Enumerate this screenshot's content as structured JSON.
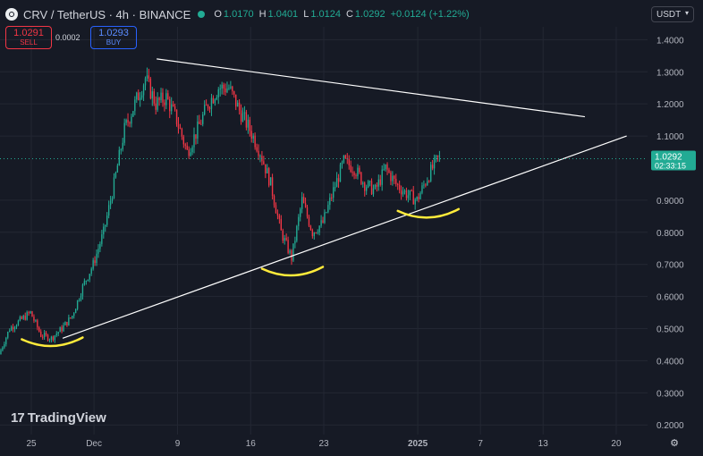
{
  "header": {
    "symbol_title": "CRV / TetherUS · 4h · BINANCE",
    "ohlc": [
      {
        "key": "O",
        "value": "1.0170"
      },
      {
        "key": "H",
        "value": "1.0401"
      },
      {
        "key": "L",
        "value": "1.0124"
      },
      {
        "key": "C",
        "value": "1.0292"
      }
    ],
    "change": "+0.0124 (+1.22%)",
    "status_color": "#22ab94"
  },
  "trade": {
    "sell_price": "1.0291",
    "sell_label": "SELL",
    "spread": "0.0002",
    "buy_price": "1.0293",
    "buy_label": "BUY"
  },
  "currency_select": {
    "value": "USDT"
  },
  "branding": {
    "name": "TradingView",
    "mark": "17"
  },
  "colors": {
    "up": "#22ab94",
    "down": "#f23645",
    "background": "#161a25",
    "grid": "#232733",
    "trendline": "#ffffff",
    "highlight": "#ffeb3b"
  },
  "chart_data": {
    "type": "candlestick",
    "title": "CRV / TetherUS · 4h · BINANCE",
    "x_ticks": [
      "25",
      "Dec",
      "9",
      "16",
      "23",
      "2025",
      "7",
      "13",
      "20"
    ],
    "y_ticks": [
      "1.4000",
      "1.3000",
      "1.2000",
      "1.1000",
      "0.9000",
      "0.8000",
      "0.7000",
      "0.6000",
      "0.5000",
      "0.4000",
      "0.3000",
      "0.2000"
    ],
    "ylim": [
      0.17,
      1.44
    ],
    "xlim": [
      "2024-11-22",
      "2025-01-23"
    ],
    "grid": true,
    "last_price": "1.0292",
    "countdown": "02:33:15",
    "price_path": [
      [
        "2024-11-22",
        0.42
      ],
      [
        "2024-11-23",
        0.5
      ],
      [
        "2024-11-25",
        0.55
      ],
      [
        "2024-11-26",
        0.48
      ],
      [
        "2024-11-27",
        0.47
      ],
      [
        "2024-11-28",
        0.5
      ],
      [
        "2024-11-29",
        0.54
      ],
      [
        "2024-11-30",
        0.63
      ],
      [
        "2024-12-01",
        0.7
      ],
      [
        "2024-12-02",
        0.8
      ],
      [
        "2024-12-03",
        0.95
      ],
      [
        "2024-12-04",
        1.12
      ],
      [
        "2024-12-05",
        1.2
      ],
      [
        "2024-12-06",
        1.28
      ],
      [
        "2024-12-07",
        1.2
      ],
      [
        "2024-12-08",
        1.22
      ],
      [
        "2024-12-09",
        1.15
      ],
      [
        "2024-12-10",
        1.05
      ],
      [
        "2024-12-11",
        1.12
      ],
      [
        "2024-12-12",
        1.2
      ],
      [
        "2024-12-13",
        1.25
      ],
      [
        "2024-12-14",
        1.25
      ],
      [
        "2024-12-15",
        1.18
      ],
      [
        "2024-12-16",
        1.12
      ],
      [
        "2024-12-17",
        1.05
      ],
      [
        "2024-12-18",
        0.95
      ],
      [
        "2024-12-19",
        0.8
      ],
      [
        "2024-12-20",
        0.72
      ],
      [
        "2024-12-21",
        0.9
      ],
      [
        "2024-12-22",
        0.8
      ],
      [
        "2024-12-23",
        0.83
      ],
      [
        "2024-12-24",
        0.93
      ],
      [
        "2024-12-25",
        1.02
      ],
      [
        "2024-12-26",
        1.0
      ],
      [
        "2024-12-27",
        0.95
      ],
      [
        "2024-12-28",
        0.93
      ],
      [
        "2024-12-29",
        1.0
      ],
      [
        "2024-12-30",
        0.95
      ],
      [
        "2024-12-31",
        0.92
      ],
      [
        "2025-01-01",
        0.9
      ],
      [
        "2025-01-02",
        0.97
      ],
      [
        "2025-01-03",
        1.03
      ]
    ],
    "trendlines": [
      {
        "from": [
          "2024-12-07",
          1.34
        ],
        "to": [
          "2025-01-17",
          1.16
        ]
      },
      {
        "from": [
          "2024-11-28",
          0.47
        ],
        "to": [
          "2025-01-21",
          1.1
        ]
      }
    ],
    "support_marks": [
      {
        "date": "2024-11-27",
        "value": 0.45
      },
      {
        "date": "2024-12-20",
        "value": 0.67
      },
      {
        "date": "2025-01-02",
        "value": 0.85
      }
    ]
  }
}
